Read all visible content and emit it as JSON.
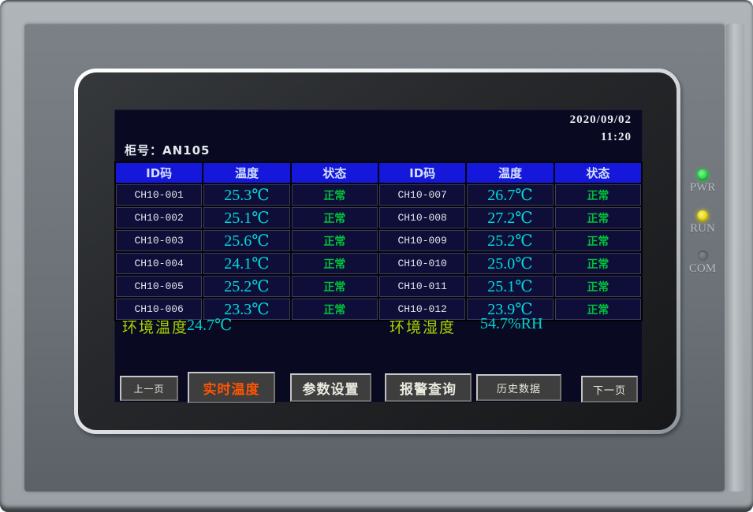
{
  "header": {
    "date": "2020/09/02",
    "time": "11:20",
    "cabinet": "柜号：AN105"
  },
  "table": {
    "headers": [
      "ID码",
      "温度",
      "状态",
      "ID码",
      "温度",
      "状态"
    ],
    "rows": [
      [
        "CH10-001",
        "25.3℃",
        "正常",
        "CH10-007",
        "26.7℃",
        "正常"
      ],
      [
        "CH10-002",
        "25.1℃",
        "正常",
        "CH10-008",
        "27.2℃",
        "正常"
      ],
      [
        "CH10-003",
        "25.6℃",
        "正常",
        "CH10-009",
        "25.2℃",
        "正常"
      ],
      [
        "CH10-004",
        "24.1℃",
        "正常",
        "CH10-010",
        "25.0℃",
        "正常"
      ],
      [
        "CH10-005",
        "25.2℃",
        "正常",
        "CH10-011",
        "25.1℃",
        "正常"
      ],
      [
        "CH10-006",
        "23.3℃",
        "正常",
        "CH10-012",
        "23.9℃",
        "正常"
      ]
    ]
  },
  "environment": {
    "temp_label": "环境温度",
    "temp_value": "24.7℃",
    "humidity_label": "环境湿度",
    "humidity_value": "54.7%RH"
  },
  "nav": {
    "buttons": [
      {
        "label": "上一页",
        "active": false
      },
      {
        "label": "实时温度",
        "active": true
      },
      {
        "label": "参数设置",
        "active": false
      },
      {
        "label": "报警查询",
        "active": false
      },
      {
        "label": "历史数据",
        "active": false
      },
      {
        "label": "下一页",
        "active": false
      }
    ]
  },
  "indicators": [
    {
      "label": "PWR",
      "state": "on",
      "color": "#2ed04a"
    },
    {
      "label": "RUN",
      "state": "on",
      "color": "#e0d000"
    },
    {
      "label": "COM",
      "state": "off",
      "color": "#70757a"
    }
  ],
  "colors": {
    "lcd_background": "#090922",
    "table_header_blue": "#1517da",
    "temperature_cyan": "#00dcdc",
    "status_green": "#00c33c",
    "env_label_green": "#a8d400",
    "active_button_orange": "#ff5400"
  }
}
